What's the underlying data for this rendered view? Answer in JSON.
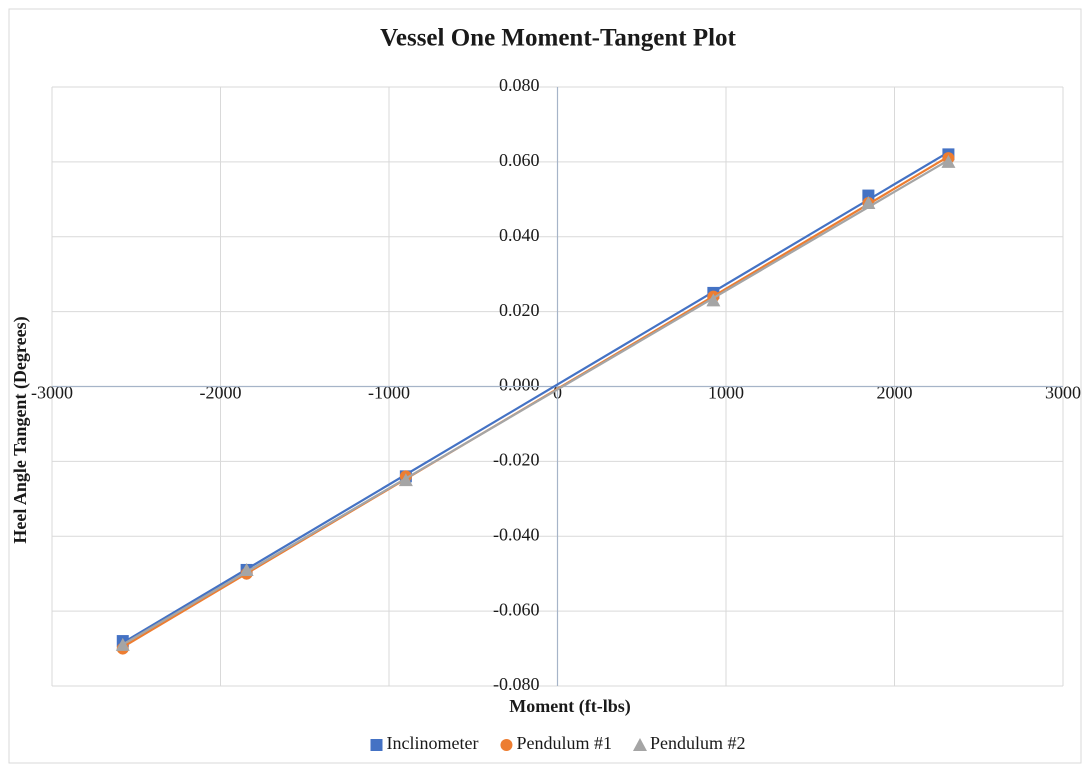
{
  "chart_data": {
    "type": "scatter",
    "title": "Vessel One Moment-Tangent Plot",
    "x_label": "Moment (ft-lbs)",
    "y_label": "Heel Angle Tangent (Degrees)",
    "xlim": [
      -3000,
      3000
    ],
    "xticks": [
      -3000,
      -2000,
      -1000,
      0,
      1000,
      2000,
      3000
    ],
    "ylim": [
      -0.08,
      0.08
    ],
    "yticks": [
      {
        "value": -0.08,
        "label": "-0.080"
      },
      {
        "value": -0.06,
        "label": "-0.060"
      },
      {
        "value": -0.04,
        "label": "-0.040"
      },
      {
        "value": -0.02,
        "label": "-0.020"
      },
      {
        "value": 0,
        "label": "0.000"
      },
      {
        "value": 0.02,
        "label": "0.020"
      },
      {
        "value": 0.04,
        "label": "0.040"
      },
      {
        "value": 0.06,
        "label": "0.060"
      },
      {
        "value": 0.08,
        "label": "0.080"
      }
    ],
    "grid": true,
    "trendline": "linear",
    "legend": "bottom",
    "x": [
      -2580,
      -1845,
      -900,
      925,
      1845,
      2320
    ],
    "series": [
      {
        "name": "Inclinometer",
        "color": "#4472c4",
        "marker": "square",
        "values": [
          -0.068,
          -0.049,
          -0.024,
          0.025,
          0.051,
          0.062
        ]
      },
      {
        "name": "Pendulum #1",
        "color": "#ed7d31",
        "marker": "circle",
        "values": [
          -0.07,
          -0.05,
          -0.024,
          0.024,
          0.049,
          0.061
        ]
      },
      {
        "name": "Pendulum #2",
        "color": "#a5a5a5",
        "marker": "triangle",
        "values": [
          -0.069,
          -0.049,
          -0.025,
          0.023,
          0.049,
          0.06
        ]
      }
    ]
  }
}
